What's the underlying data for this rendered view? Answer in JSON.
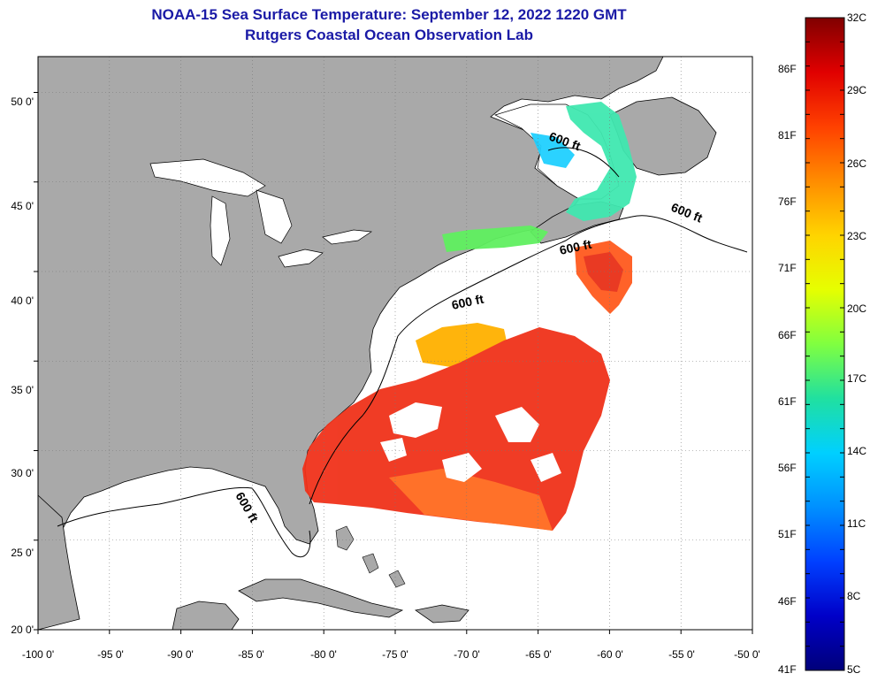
{
  "title": {
    "line1": "NOAA-15 Sea Surface Temperature:  September 12, 2022 1220 GMT",
    "line2": "Rutgers Coastal Ocean Observation Lab"
  },
  "map": {
    "lon_range": [
      -100,
      -50
    ],
    "lat_range": [
      20,
      52
    ],
    "grid": true,
    "lat_ticks": [
      {
        "value": 50,
        "label": "50 0'"
      },
      {
        "value": 45,
        "label": "45 0'"
      },
      {
        "value": 40,
        "label": "40 0'"
      },
      {
        "value": 35,
        "label": "35 0'"
      },
      {
        "value": 30,
        "label": "30 0'"
      },
      {
        "value": 25,
        "label": "25 0'"
      },
      {
        "value": 20,
        "label": "20 0'"
      }
    ],
    "lon_ticks": [
      {
        "value": -100,
        "label": "-100 0'"
      },
      {
        "value": -95,
        "label": "-95 0'"
      },
      {
        "value": -90,
        "label": "-90 0'"
      },
      {
        "value": -85,
        "label": "-85 0'"
      },
      {
        "value": -80,
        "label": "-80 0'"
      },
      {
        "value": -75,
        "label": "-75 0'"
      },
      {
        "value": -70,
        "label": "-70 0'"
      },
      {
        "value": -65,
        "label": "-65 0'"
      },
      {
        "value": -60,
        "label": "-60 0'"
      },
      {
        "value": -55,
        "label": "-55 0'"
      },
      {
        "value": -50,
        "label": "-50 0'"
      }
    ],
    "contour_labels": [
      "600 ft",
      "600 ft",
      "600 ft",
      "600 ft",
      "600 ft"
    ],
    "colors": {
      "land": "#a9a9a9",
      "ocean": "#ffffff",
      "grid": "#777777",
      "coast": "#000000"
    }
  },
  "colorbar": {
    "celsius_labels": [
      "32C",
      "29C",
      "26C",
      "23C",
      "20C",
      "17C",
      "14C",
      "11C",
      "8C",
      "5C"
    ],
    "fahrenheit_labels": [
      "86F",
      "81F",
      "76F",
      "71F",
      "66F",
      "61F",
      "56F",
      "51F",
      "46F",
      "41F"
    ],
    "min_c": 5,
    "max_c": 32,
    "gradient": [
      "#800000",
      "#e00000",
      "#ff4000",
      "#ff8c00",
      "#ffd400",
      "#e6ff00",
      "#80ff40",
      "#20e0a0",
      "#00d0ff",
      "#0090ff",
      "#0040ff",
      "#0000c8",
      "#00007a"
    ]
  }
}
